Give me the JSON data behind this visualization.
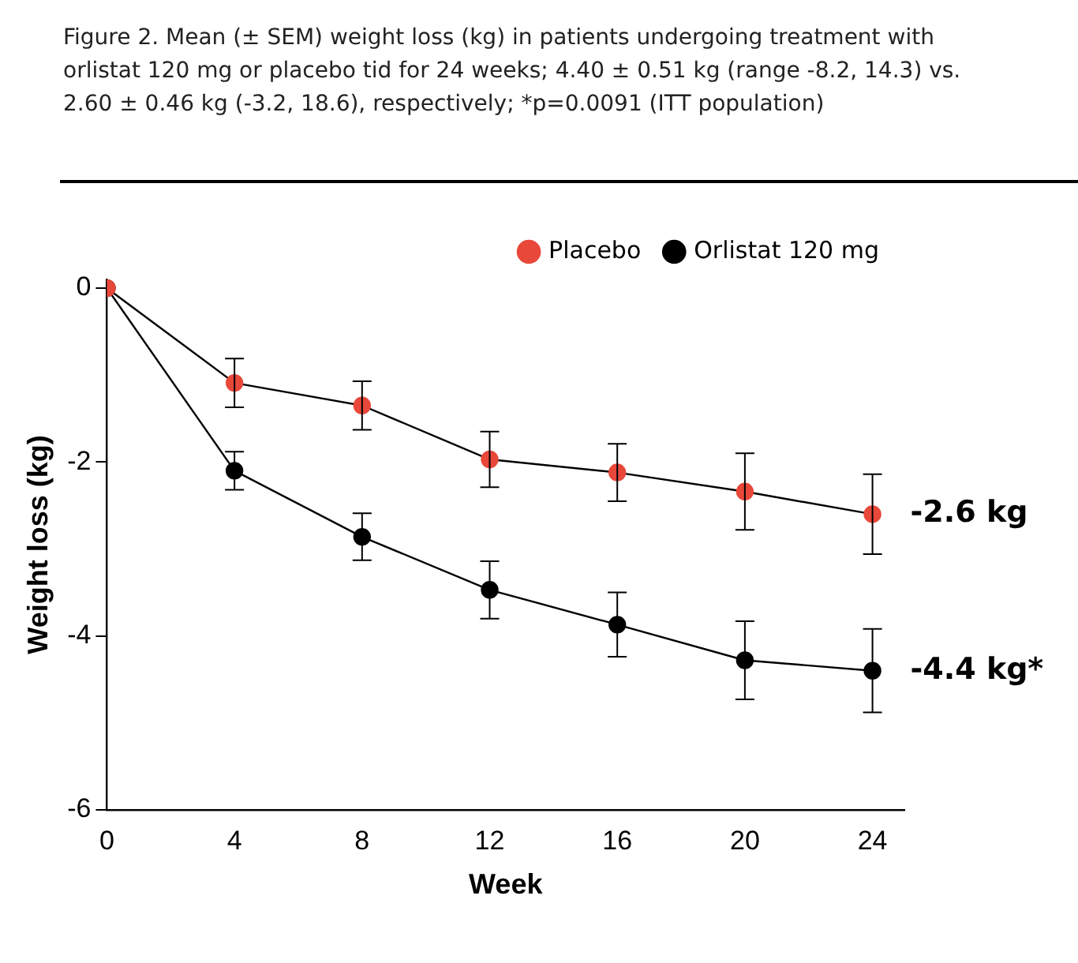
{
  "chart_data": {
    "type": "line",
    "title": "Figure 2. Mean (± SEM) weight loss (kg) in patients undergoing treatment with orlistat 120 mg or placebo tid for 24 weeks; 4.40 ± 0.51 kg (range -8.2, 14.3) vs. 2.60 ± 0.46 kg (-3.2, 18.6), respectively; *p=0.0091 (ITT population)",
    "xlabel": "Week",
    "ylabel": "Weight loss (kg)",
    "x": [
      0,
      4,
      8,
      12,
      16,
      20,
      24
    ],
    "series": [
      {
        "name": "Placebo",
        "color": "#e8483a",
        "values": [
          0,
          -1.09,
          -1.35,
          -1.97,
          -2.12,
          -2.34,
          -2.6
        ],
        "errors": [
          null,
          0.28,
          0.28,
          0.32,
          0.33,
          0.44,
          0.46
        ]
      },
      {
        "name": "Orlistat 120 mg",
        "color": "#000000",
        "values": [
          0,
          -2.1,
          -2.86,
          -3.47,
          -3.87,
          -4.28,
          -4.4
        ],
        "errors": [
          null,
          0.22,
          0.27,
          0.33,
          0.37,
          0.45,
          0.48
        ]
      }
    ],
    "annotations": [
      {
        "text": "-2.6 kg",
        "x": 24,
        "y": -2.6
      },
      {
        "text": "-4.4 kg*",
        "x": 24,
        "y": -4.4
      }
    ],
    "xlim": [
      0,
      25
    ],
    "xticks": [
      0,
      4,
      8,
      12,
      16,
      20,
      24
    ],
    "ylim": [
      -6,
      0.1
    ],
    "yticks": [
      0,
      -2,
      -4,
      -6
    ],
    "grid": false,
    "legend": "top right",
    "marker": "circle",
    "line_style": "solid"
  }
}
